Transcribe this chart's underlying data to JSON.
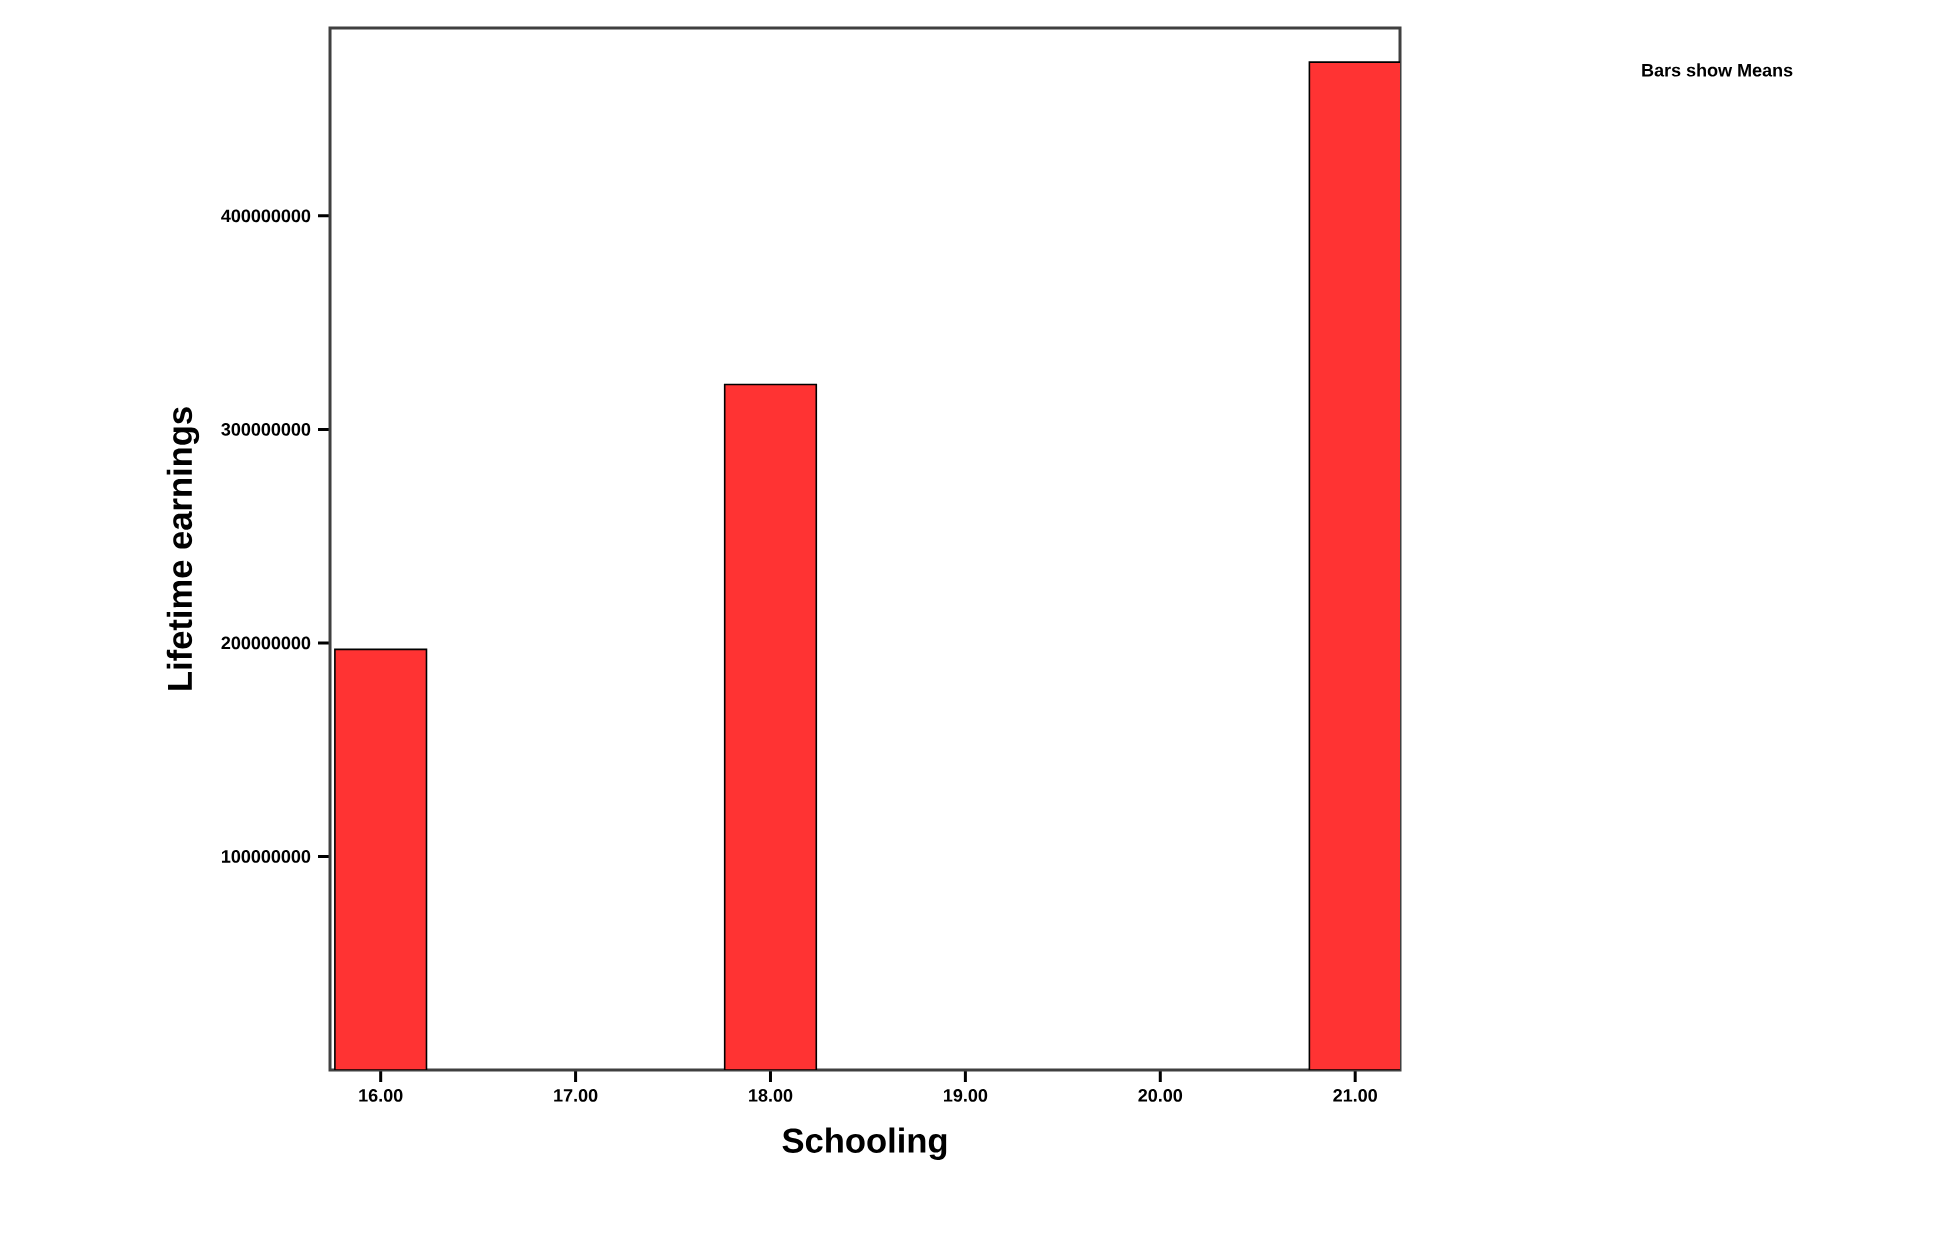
{
  "chart_data": {
    "type": "bar",
    "xlabel": "Schooling",
    "ylabel": "Lifetime earnings",
    "categories": [
      "16.00",
      "17.00",
      "18.00",
      "19.00",
      "20.00",
      "21.00"
    ],
    "values": [
      197000000,
      null,
      321000000,
      null,
      null,
      472000000
    ],
    "color": "#ff3333",
    "ylim": [
      0,
      488000000
    ],
    "yticks": [
      100000000,
      200000000,
      300000000,
      400000000
    ],
    "annotations": [
      "Bars show Means"
    ]
  }
}
